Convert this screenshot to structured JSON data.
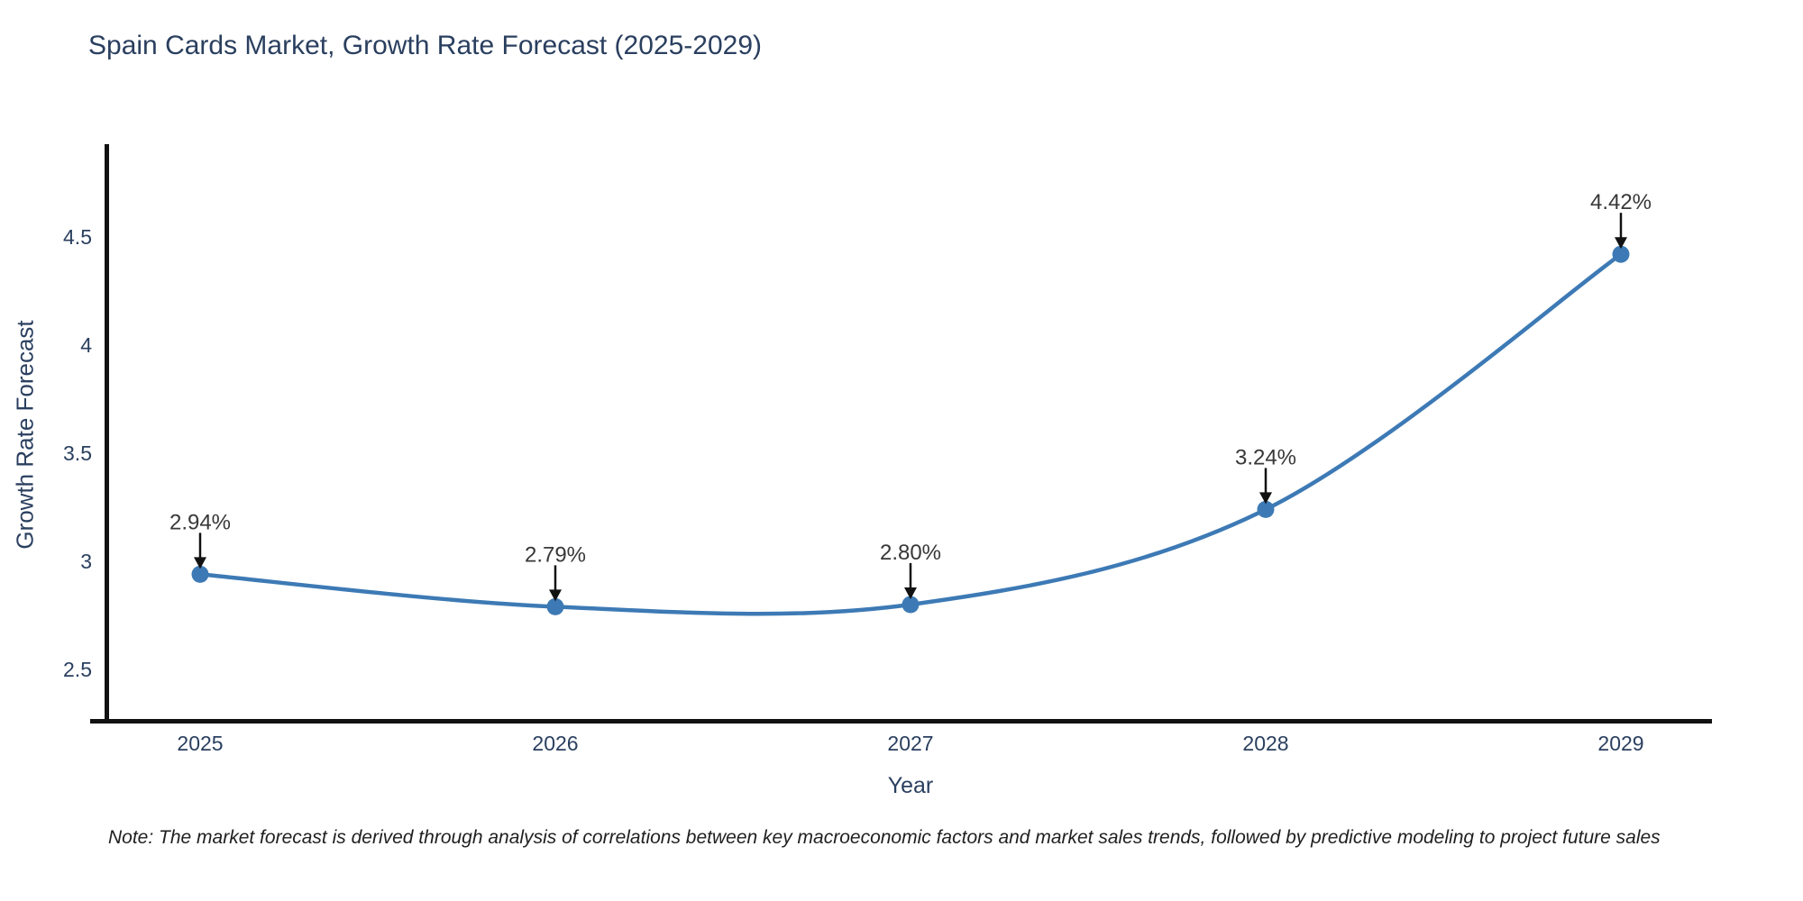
{
  "title": "Spain Cards Market, Growth Rate Forecast (2025-2029)",
  "note": "Note: The market forecast is derived through analysis of correlations between key macroeconomic factors and market sales trends, followed by predictive modeling to project future sales",
  "chart_data": {
    "type": "line",
    "title": "Spain Cards Market, Growth Rate Forecast (2025-2029)",
    "xlabel": "Year",
    "ylabel": "Growth Rate Forecast",
    "categories": [
      "2025",
      "2026",
      "2027",
      "2028",
      "2029"
    ],
    "values": [
      2.94,
      2.79,
      2.8,
      3.24,
      4.42
    ],
    "point_labels": [
      "2.94%",
      "2.79%",
      "2.80%",
      "3.24%",
      "4.42%"
    ],
    "series_name": "Growth Rate Forecast",
    "yticks": [
      2.5,
      3.0,
      3.5,
      4.0,
      4.5
    ],
    "ytick_labels": [
      "2.5",
      "3",
      "3.5",
      "4",
      "4.5"
    ],
    "xtick_labels": [
      "2025",
      "2026",
      "2027",
      "2028",
      "2029"
    ],
    "ylim": [
      2.26,
      4.95
    ],
    "grid": false,
    "legend": false,
    "line_shape": "spline",
    "annotation_style": "arrow-down-to-point",
    "colors": {
      "line": "#3d7ab5",
      "marker": "#3d7ab5",
      "axis": "#111111",
      "tick_text": "#2a3f5f",
      "annotation_text": "#383838",
      "annotation_arrow": "#111111",
      "background": "#ffffff"
    }
  }
}
